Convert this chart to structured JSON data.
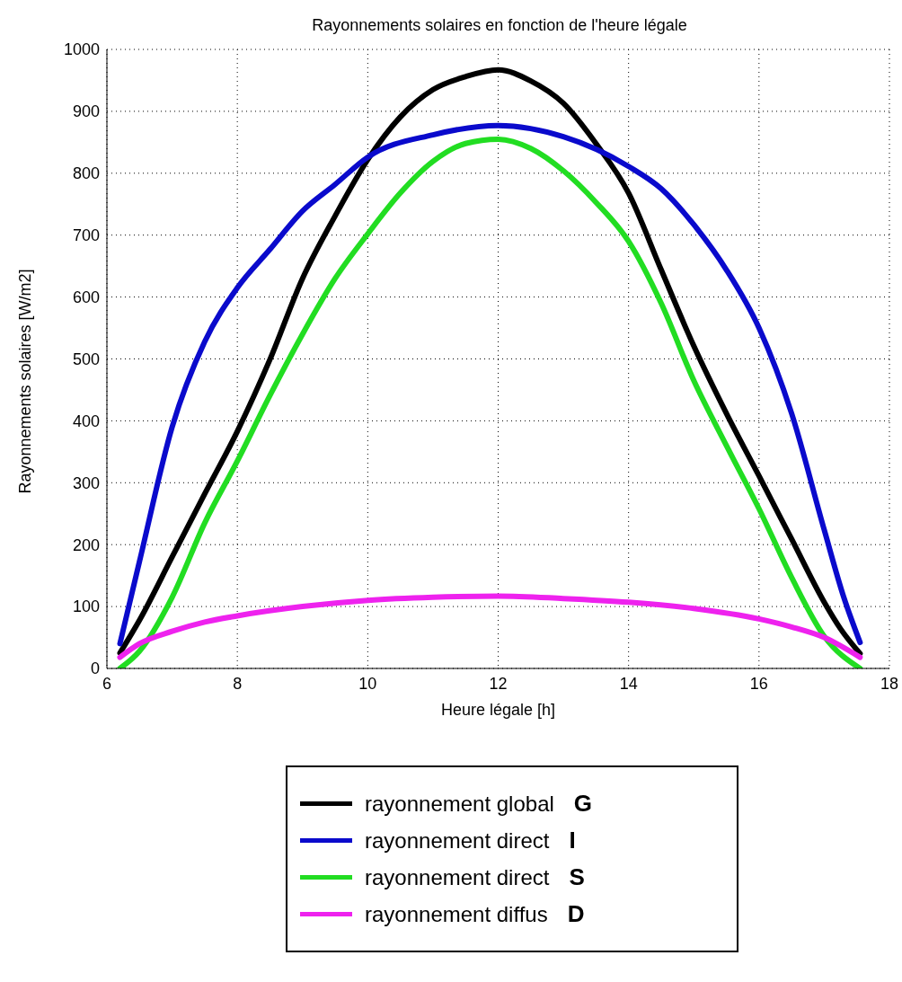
{
  "chart_data": {
    "type": "line",
    "title": "Rayonnements solaires en fonction de l'heure légale",
    "xlabel": "Heure légale [h]",
    "ylabel": "Rayonnements solaires [W/m2]",
    "xlim": [
      6,
      18
    ],
    "xticks": [
      6,
      8,
      10,
      12,
      14,
      16,
      18
    ],
    "ylim": [
      0,
      1000
    ],
    "yticks": [
      0,
      100,
      200,
      300,
      400,
      500,
      600,
      700,
      800,
      900,
      1000
    ],
    "grid": true,
    "legend": "bottom",
    "line_style": "solid",
    "marker": "none",
    "series": [
      {
        "name": "rayonnement global G",
        "color": "#000000",
        "x": [
          6.2,
          6.5,
          7,
          7.5,
          8,
          8.5,
          9,
          9.5,
          10,
          10.5,
          11,
          11.5,
          12,
          12.5,
          13,
          13.5,
          14,
          14.5,
          15,
          15.5,
          16,
          16.5,
          17,
          17.25,
          17.55
        ],
        "values": [
          25,
          78,
          180,
          282,
          383,
          499,
          630,
          731,
          822,
          891,
          935,
          956,
          967,
          949,
          913,
          848,
          768,
          644,
          521,
          412,
          311,
          209,
          107,
          64,
          24
        ]
      },
      {
        "name": "rayonnement direct I",
        "color": "#0a0acc",
        "x": [
          6.2,
          6.5,
          7,
          7.5,
          8,
          8.5,
          9,
          9.5,
          10,
          11,
          12,
          13,
          14,
          14.5,
          15,
          15.5,
          16,
          16.5,
          17,
          17.3,
          17.55
        ],
        "values": [
          40,
          173,
          390,
          528,
          615,
          677,
          739,
          782,
          826,
          862,
          877,
          859,
          811,
          775,
          717,
          644,
          550,
          412,
          224,
          115,
          42
        ]
      },
      {
        "name": "rayonnement direct S",
        "color": "#22dd22",
        "x": [
          6.2,
          6.5,
          7,
          7.5,
          8,
          8.5,
          9,
          9.5,
          10,
          10.5,
          11,
          11.5,
          12,
          12.5,
          13,
          13.5,
          14,
          14.5,
          15,
          15.5,
          16,
          16.5,
          17,
          17.55
        ],
        "values": [
          0,
          28,
          115,
          235,
          335,
          441,
          540,
          630,
          702,
          768,
          819,
          848,
          855,
          840,
          804,
          753,
          690,
          590,
          465,
          360,
          258,
          147,
          52,
          0
        ]
      },
      {
        "name": "rayonnement diffus D",
        "color": "#ee22ee",
        "x": [
          6.2,
          6.5,
          7,
          7.5,
          8,
          9,
          10,
          11,
          12,
          13,
          14,
          15,
          16,
          16.5,
          17,
          17.55
        ],
        "values": [
          18,
          40,
          60,
          75,
          85,
          100,
          110,
          115,
          117,
          113,
          107,
          97,
          80,
          67,
          50,
          18
        ]
      }
    ]
  }
}
